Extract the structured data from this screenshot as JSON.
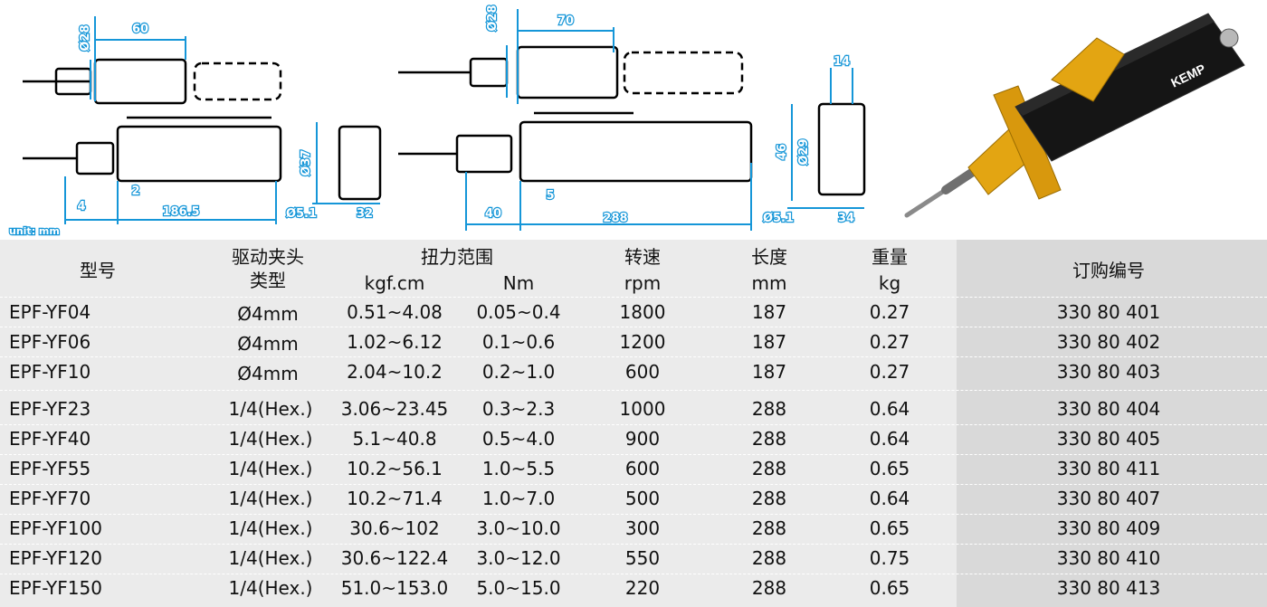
{
  "drawing": {
    "small_top_width": "60",
    "small_top_height": "Ø28",
    "large_top_width": "70",
    "large_top_height": "Ø28",
    "small_side_a": "4",
    "small_side_b": "2",
    "small_side_len": "186.5",
    "small_end_height": "Ø37",
    "small_end_hex": "Ø5.1",
    "small_end_width": "32",
    "large_side_a": "40",
    "large_side_b": "5",
    "large_side_len": "288",
    "large_end_top": "14",
    "large_end_height": "46",
    "large_end_sub": "Ø29",
    "large_end_hex": "Ø5.1",
    "large_end_width": "34",
    "unit_note": "unit: mm"
  },
  "product": {
    "logo_text": "KEMP",
    "colors": {
      "body": "#151515",
      "flange": "#e3a512",
      "bit": "#8a8a8a"
    }
  },
  "table": {
    "headers": {
      "model": "型号",
      "chuck_line1": "驱动夹头",
      "chuck_line2": "类型",
      "torque": "扭力范围",
      "torque_kgf": "kgf.cm",
      "torque_nm": "Nm",
      "speed": "转速",
      "speed_unit": "rpm",
      "length": "长度",
      "length_unit": "mm",
      "weight": "重量",
      "weight_unit": "kg",
      "order": "订购编号"
    },
    "rows": [
      {
        "model": "EPF-YF04",
        "chuck": "Ø4mm",
        "kgf": "0.51~4.08",
        "nm": "0.05~0.4",
        "rpm": "1800",
        "len": "187",
        "kg": "0.27",
        "order": "330 80 401"
      },
      {
        "model": "EPF-YF06",
        "chuck": "Ø4mm",
        "kgf": "1.02~6.12",
        "nm": "0.1~0.6",
        "rpm": "1200",
        "len": "187",
        "kg": "0.27",
        "order": "330 80 402"
      },
      {
        "model": "EPF-YF10",
        "chuck": "Ø4mm",
        "kgf": "2.04~10.2",
        "nm": "0.2~1.0",
        "rpm": "600",
        "len": "187",
        "kg": "0.27",
        "order": "330 80 403"
      },
      {
        "model": "EPF-YF23",
        "chuck": "1/4(Hex.)",
        "kgf": "3.06~23.45",
        "nm": "0.3~2.3",
        "rpm": "1000",
        "len": "288",
        "kg": "0.64",
        "order": "330 80 404"
      },
      {
        "model": "EPF-YF40",
        "chuck": "1/4(Hex.)",
        "kgf": "5.1~40.8",
        "nm": "0.5~4.0",
        "rpm": "900",
        "len": "288",
        "kg": "0.64",
        "order": "330 80 405"
      },
      {
        "model": "EPF-YF55",
        "chuck": "1/4(Hex.)",
        "kgf": "10.2~56.1",
        "nm": "1.0~5.5",
        "rpm": "600",
        "len": "288",
        "kg": "0.65",
        "order": "330 80 411"
      },
      {
        "model": "EPF-YF70",
        "chuck": "1/4(Hex.)",
        "kgf": "10.2~71.4",
        "nm": "1.0~7.0",
        "rpm": "500",
        "len": "288",
        "kg": "0.64",
        "order": "330 80 407"
      },
      {
        "model": "EPF-YF100",
        "chuck": "1/4(Hex.)",
        "kgf": "30.6~102",
        "nm": "3.0~10.0",
        "rpm": "300",
        "len": "288",
        "kg": "0.65",
        "order": "330 80 409"
      },
      {
        "model": "EPF-YF120",
        "chuck": "1/4(Hex.)",
        "kgf": "30.6~122.4",
        "nm": "3.0~12.0",
        "rpm": "550",
        "len": "288",
        "kg": "0.75",
        "order": "330 80 410"
      },
      {
        "model": "EPF-YF150",
        "chuck": "1/4(Hex.)",
        "kgf": "51.0~153.0",
        "nm": "5.0~15.0",
        "rpm": "220",
        "len": "288",
        "kg": "0.65",
        "order": "330 80 413"
      }
    ]
  }
}
